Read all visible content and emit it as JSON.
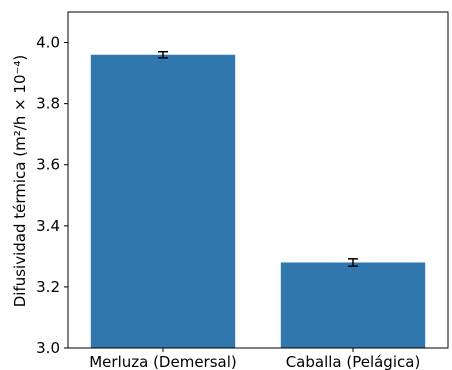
{
  "chart_data": {
    "type": "bar",
    "title": "",
    "xlabel": "",
    "ylabel": "Difusividad térmica (m²/h × 10⁻⁴)",
    "categories": [
      "Merluza (Demersal)",
      "Caballa (Pelágica)"
    ],
    "values": [
      3.96,
      3.28
    ],
    "errors": [
      0.01,
      0.012
    ],
    "ylim": [
      3.0,
      4.1
    ],
    "yticks": [
      3.0,
      3.2,
      3.4,
      3.6,
      3.8,
      4.0
    ],
    "ytick_labels": [
      "3.0",
      "3.2",
      "3.4",
      "3.6",
      "3.8",
      "4.0"
    ],
    "bar_color": "#2f77ad",
    "error_color": "#000000",
    "grid": false,
    "legend": "none"
  }
}
